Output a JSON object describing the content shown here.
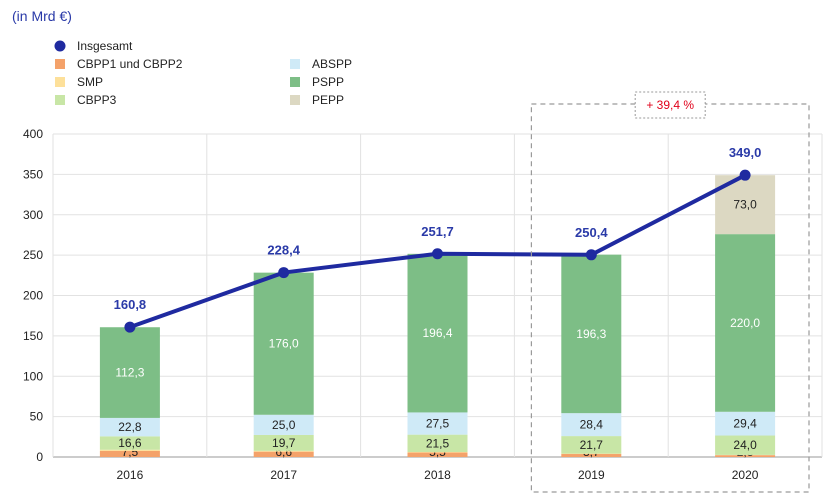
{
  "unit_label": "(in Mrd €)",
  "colors": {
    "total": "#1f2aa0",
    "CBPP1 und CBPP2": "#f4a26a",
    "SMP": "#fde09a",
    "CBPP3": "#c8e6a6",
    "ABSPP": "#cfeaf7",
    "PSPP": "#7dbe86",
    "PEPP": "#dcd8c2",
    "annotation": "#e1001a"
  },
  "chart_data": {
    "type": "bar",
    "stacked": true,
    "categories": [
      "2016",
      "2017",
      "2018",
      "2019",
      "2020"
    ],
    "ylim": [
      0,
      400
    ],
    "yticks": [
      0,
      50,
      100,
      150,
      200,
      250,
      300,
      350,
      400
    ],
    "grid": true,
    "legend_position": "top-left",
    "series": [
      {
        "name": "CBPP1 und CBPP2",
        "values": [
          7.5,
          6.6,
          5.5,
          3.7,
          2.3
        ],
        "labels": [
          "7,5",
          "6,6",
          "5,5",
          "3,7",
          "2,3"
        ]
      },
      {
        "name": "SMP",
        "values": [
          1.5,
          1.0,
          0.7,
          0.5,
          0.3
        ],
        "labels": [
          "",
          "",
          "",
          "",
          ""
        ]
      },
      {
        "name": "CBPP3",
        "values": [
          16.6,
          19.7,
          21.5,
          21.7,
          24.0
        ],
        "labels": [
          "16,6",
          "19,7",
          "21,5",
          "21,7",
          "24,0"
        ]
      },
      {
        "name": "ABSPP",
        "values": [
          22.8,
          25.0,
          27.5,
          28.4,
          29.4
        ],
        "labels": [
          "22,8",
          "25,0",
          "27,5",
          "28,4",
          "29,4"
        ]
      },
      {
        "name": "PSPP",
        "values": [
          112.3,
          176.0,
          196.4,
          196.3,
          220.0
        ],
        "labels": [
          "112,3",
          "176,0",
          "196,4",
          "196,3",
          "220,0"
        ]
      },
      {
        "name": "PEPP",
        "values": [
          0,
          0,
          0,
          0,
          73.0
        ],
        "labels": [
          "",
          "",
          "",
          "",
          "73,0"
        ]
      }
    ],
    "total": {
      "name": "Insgesamt",
      "values": [
        160.8,
        228.4,
        251.7,
        250.4,
        349.0
      ],
      "labels": [
        "160,8",
        "228,4",
        "251,7",
        "250,4",
        "349,0"
      ]
    },
    "legend": {
      "left": [
        "Insgesamt",
        "CBPP1 und CBPP2",
        "SMP",
        "CBPP3"
      ],
      "right": [
        "ABSPP",
        "PSPP",
        "PEPP"
      ]
    },
    "annotation": {
      "text": "+ 39,4 %",
      "highlight_categories": [
        "2019",
        "2020"
      ]
    }
  }
}
